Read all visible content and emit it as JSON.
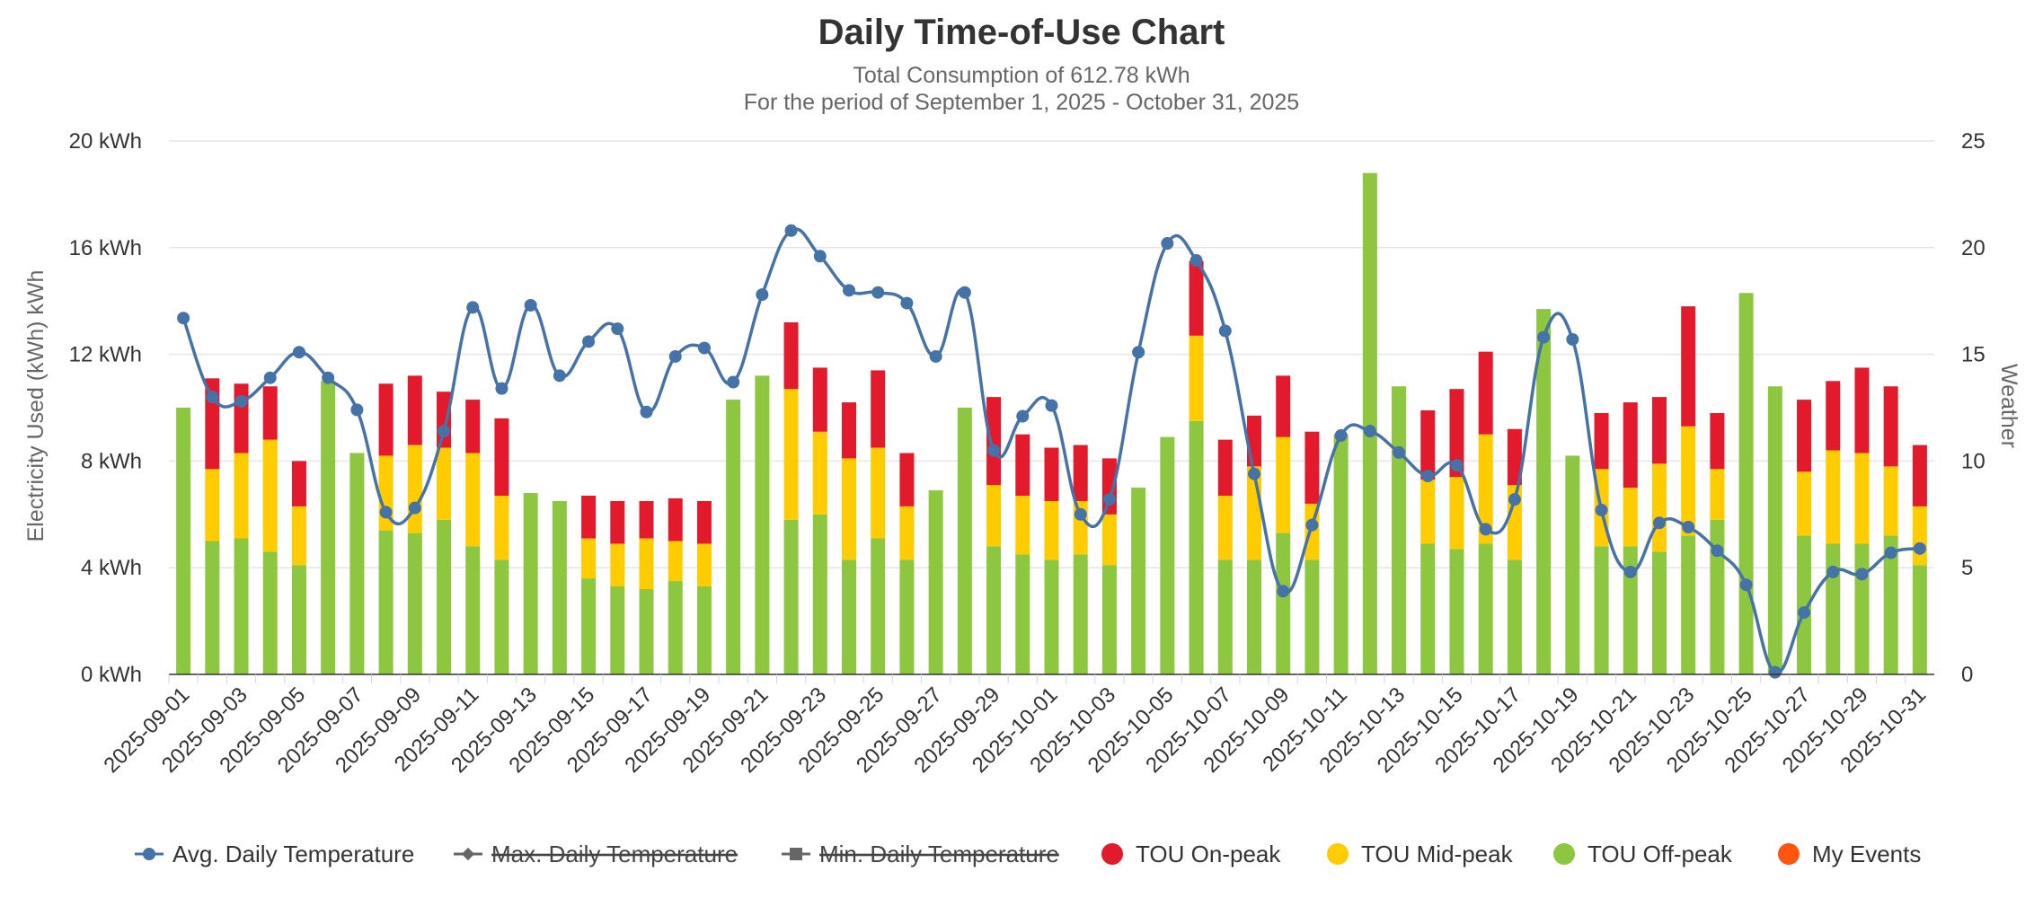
{
  "chart_data": {
    "type": "bar",
    "title": "Daily Time-of-Use Chart",
    "subtitle_line1": "Total Consumption of 612.78 kWh",
    "subtitle_line2": "For the period of September 1, 2025 - October 31, 2025",
    "ylabel": "Electricity Used (kWh) kWh",
    "y2label": "Weather",
    "ylim": [
      0,
      20
    ],
    "y2lim": [
      0,
      25
    ],
    "y_ticks": [
      "0 kWh",
      "4 kWh",
      "8 kWh",
      "12 kWh",
      "16 kWh",
      "20 kWh"
    ],
    "y2_ticks": [
      "0",
      "5",
      "10",
      "15",
      "20",
      "25"
    ],
    "categories": [
      "2025-09-01",
      "2025-09-02",
      "2025-09-03",
      "2025-09-04",
      "2025-09-05",
      "2025-09-06",
      "2025-09-07",
      "2025-09-08",
      "2025-09-09",
      "2025-09-10",
      "2025-09-11",
      "2025-09-12",
      "2025-09-13",
      "2025-09-14",
      "2025-09-15",
      "2025-09-16",
      "2025-09-17",
      "2025-09-18",
      "2025-09-19",
      "2025-09-20",
      "2025-09-21",
      "2025-09-22",
      "2025-09-23",
      "2025-09-24",
      "2025-09-25",
      "2025-09-26",
      "2025-09-27",
      "2025-09-28",
      "2025-09-29",
      "2025-09-30",
      "2025-10-01",
      "2025-10-02",
      "2025-10-03",
      "2025-10-04",
      "2025-10-05",
      "2025-10-06",
      "2025-10-07",
      "2025-10-08",
      "2025-10-09",
      "2025-10-10",
      "2025-10-11",
      "2025-10-12",
      "2025-10-13",
      "2025-10-14",
      "2025-10-15",
      "2025-10-16",
      "2025-10-17",
      "2025-10-18",
      "2025-10-19",
      "2025-10-20",
      "2025-10-21",
      "2025-10-22",
      "2025-10-23",
      "2025-10-24",
      "2025-10-25",
      "2025-10-26",
      "2025-10-27",
      "2025-10-28",
      "2025-10-29",
      "2025-10-30",
      "2025-10-31"
    ],
    "x_tick_labels": [
      "2025-09-01",
      "2025-09-03",
      "2025-09-05",
      "2025-09-07",
      "2025-09-09",
      "2025-09-11",
      "2025-09-13",
      "2025-09-15",
      "2025-09-17",
      "2025-09-19",
      "2025-09-21",
      "2025-09-23",
      "2025-09-25",
      "2025-09-27",
      "2025-09-29",
      "2025-10-01",
      "2025-10-03",
      "2025-10-05",
      "2025-10-07",
      "2025-10-09",
      "2025-10-11",
      "2025-10-13",
      "2025-10-15",
      "2025-10-17",
      "2025-10-19",
      "2025-10-21",
      "2025-10-23",
      "2025-10-25",
      "2025-10-27",
      "2025-10-29",
      "2025-10-31"
    ],
    "series": [
      {
        "name": "TOU Off-peak",
        "color": "#8dc63f",
        "values": [
          10.0,
          5.0,
          5.1,
          4.6,
          4.1,
          11.0,
          8.3,
          5.4,
          5.3,
          5.8,
          4.8,
          4.3,
          6.8,
          6.5,
          3.6,
          3.3,
          3.2,
          3.5,
          3.3,
          10.3,
          11.2,
          5.8,
          6.0,
          4.3,
          5.1,
          4.3,
          6.9,
          10.0,
          4.8,
          4.5,
          4.3,
          4.5,
          4.1,
          7.0,
          8.9,
          9.5,
          4.3,
          4.3,
          5.3,
          4.3,
          9.0,
          18.8,
          10.8,
          4.9,
          4.7,
          4.9,
          4.3,
          13.7,
          8.2,
          4.8,
          4.8,
          4.6,
          5.2,
          5.8,
          14.3,
          10.8,
          5.2,
          4.9,
          4.9,
          5.2,
          4.1
        ]
      },
      {
        "name": "TOU Mid-peak",
        "color": "#ffcc00",
        "values": [
          0,
          2.7,
          3.2,
          4.2,
          2.2,
          0,
          0,
          2.8,
          3.3,
          2.7,
          3.5,
          2.4,
          0,
          0,
          1.5,
          1.6,
          1.9,
          1.5,
          1.6,
          0,
          0,
          4.9,
          3.1,
          3.8,
          3.4,
          2.0,
          0,
          0,
          2.3,
          2.2,
          2.2,
          2.0,
          1.9,
          0,
          0,
          3.2,
          2.4,
          3.5,
          3.6,
          2.1,
          0,
          0,
          0,
          2.4,
          2.7,
          4.1,
          2.8,
          0,
          0,
          2.9,
          2.2,
          3.3,
          4.1,
          1.9,
          0,
          0,
          2.4,
          3.5,
          3.4,
          2.6,
          2.2
        ]
      },
      {
        "name": "TOU On-peak",
        "color": "#e31a2b",
        "values": [
          0,
          3.4,
          2.6,
          2.0,
          1.7,
          0,
          0,
          2.7,
          2.6,
          2.1,
          2.0,
          2.9,
          0,
          0,
          1.6,
          1.6,
          1.4,
          1.6,
          1.6,
          0,
          0,
          2.5,
          2.4,
          2.1,
          2.9,
          2.0,
          0,
          0,
          3.3,
          2.3,
          2.0,
          2.1,
          2.1,
          0,
          0,
          2.8,
          2.1,
          1.9,
          2.3,
          2.7,
          0,
          0,
          0,
          2.6,
          3.3,
          3.1,
          2.1,
          0,
          0,
          2.1,
          3.2,
          2.5,
          4.5,
          2.1,
          0,
          0,
          2.7,
          2.6,
          3.2,
          3.0,
          2.3
        ]
      },
      {
        "name": "Avg. Daily Temperature",
        "color": "#4572a7",
        "values": [
          16.7,
          13.0,
          12.8,
          13.9,
          15.1,
          13.9,
          12.4,
          7.6,
          7.8,
          11.4,
          17.2,
          13.4,
          17.3,
          14.0,
          15.6,
          16.2,
          12.3,
          14.9,
          15.3,
          13.7,
          17.8,
          20.8,
          19.6,
          18.0,
          17.9,
          17.4,
          14.9,
          17.9,
          10.5,
          12.1,
          12.6,
          7.5,
          8.2,
          15.1,
          20.2,
          19.4,
          16.1,
          9.4,
          3.9,
          7.0,
          11.2,
          11.4,
          10.4,
          9.3,
          9.8,
          6.8,
          8.2,
          15.8,
          15.7,
          7.7,
          4.8,
          7.1,
          6.9,
          5.8,
          4.2,
          0.1,
          2.9,
          4.8,
          4.7,
          5.7,
          5.9
        ]
      }
    ],
    "legend": [
      {
        "name": "Avg. Daily Temperature",
        "type": "line",
        "color": "#4572a7",
        "hidden": false
      },
      {
        "name": "Max. Daily Temperature",
        "type": "line-diamond",
        "color": "#666666",
        "hidden": true
      },
      {
        "name": "Min. Daily Temperature",
        "type": "line-square",
        "color": "#666666",
        "hidden": true
      },
      {
        "name": "TOU On-peak",
        "type": "dot",
        "color": "#e31a2b",
        "hidden": false
      },
      {
        "name": "TOU Mid-peak",
        "type": "dot",
        "color": "#ffcc00",
        "hidden": false
      },
      {
        "name": "TOU Off-peak",
        "type": "dot",
        "color": "#8dc63f",
        "hidden": false
      },
      {
        "name": "My Events",
        "type": "dot",
        "color": "#ff5511",
        "hidden": false
      }
    ]
  }
}
